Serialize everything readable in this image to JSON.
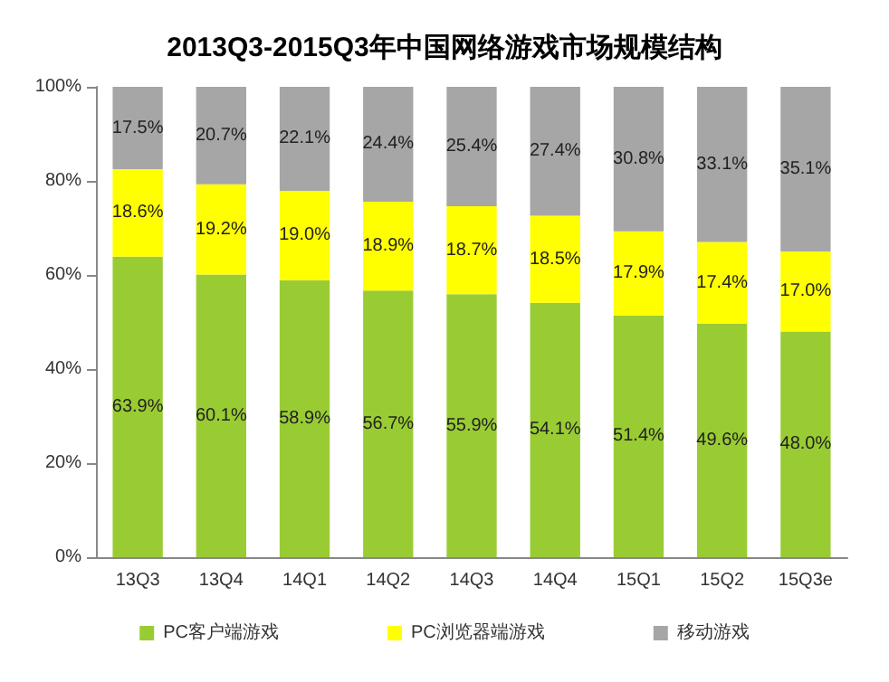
{
  "chart_data": {
    "type": "bar",
    "title": "2013Q3-2015Q3年中国网络游戏市场规模结构",
    "stacked": true,
    "categories": [
      "13Q3",
      "13Q4",
      "14Q1",
      "14Q2",
      "14Q3",
      "14Q4",
      "15Q1",
      "15Q2",
      "15Q3e"
    ],
    "series": [
      {
        "name": "PC客户端游戏",
        "color": "#99cc33",
        "values": [
          63.9,
          60.1,
          58.9,
          56.7,
          55.9,
          54.1,
          51.4,
          49.6,
          48.0
        ],
        "value_labels": [
          "63.9%",
          "60.1%",
          "58.9%",
          "56.7%",
          "55.9%",
          "54.1%",
          "51.4%",
          "49.6%",
          "48.0%"
        ]
      },
      {
        "name": "PC浏览器端游戏",
        "color": "#ffff00",
        "values": [
          18.6,
          19.2,
          19.0,
          18.9,
          18.7,
          18.5,
          17.9,
          17.4,
          17.0
        ],
        "value_labels": [
          "18.6%",
          "19.2%",
          "19.0%",
          "18.9%",
          "18.7%",
          "18.5%",
          "17.9%",
          "17.4%",
          "17.0%"
        ]
      },
      {
        "name": "移动游戏",
        "color": "#a6a6a6",
        "values": [
          17.5,
          20.7,
          22.1,
          24.4,
          25.4,
          27.4,
          30.8,
          33.1,
          35.1
        ],
        "value_labels": [
          "17.5%",
          "20.7%",
          "22.1%",
          "24.4%",
          "25.4%",
          "27.4%",
          "30.8%",
          "33.1%",
          "35.1%"
        ]
      }
    ],
    "ylim": [
      0,
      100
    ],
    "yticks": [
      {
        "value": 0,
        "label": "0%"
      },
      {
        "value": 20,
        "label": "20%"
      },
      {
        "value": 40,
        "label": "40%"
      },
      {
        "value": 60,
        "label": "60%"
      },
      {
        "value": 80,
        "label": "80%"
      },
      {
        "value": 100,
        "label": "100%"
      }
    ],
    "grid": false,
    "legend": "bottom"
  }
}
